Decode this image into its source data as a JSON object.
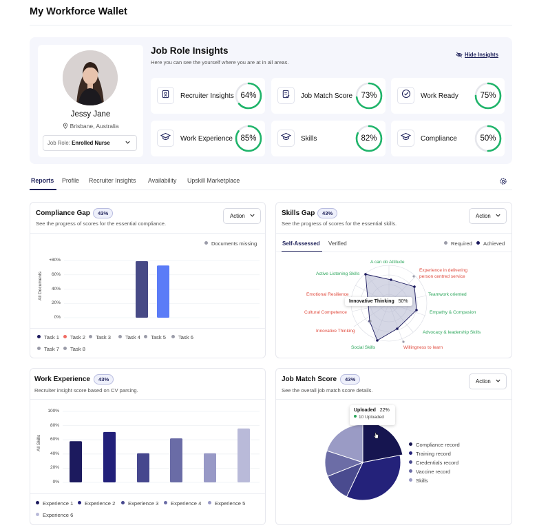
{
  "page": {
    "title": "My Workforce Wallet"
  },
  "profile": {
    "name": "Jessy Jane",
    "location": "Brisbane, Australia",
    "job_role_label": "Job Role:",
    "job_role_value": "Enrolled Nurse"
  },
  "insights": {
    "title": "Job Role Insights",
    "subtitle": "Here you can see the yourself where you are at in all areas.",
    "hide_label": "Hide Insights",
    "metrics": [
      {
        "label": "Recruiter Insights",
        "value": "64%",
        "fraction": 0.64,
        "icon": "id-badge-icon"
      },
      {
        "label": "Job Match Score",
        "value": "73%",
        "fraction": 0.73,
        "icon": "document-check-icon"
      },
      {
        "label": "Work Ready",
        "value": "75%",
        "fraction": 0.75,
        "icon": "check-circle-icon"
      },
      {
        "label": "Work Experience",
        "value": "85%",
        "fraction": 0.85,
        "icon": "graduation-cap-icon"
      },
      {
        "label": "Skills",
        "value": "82%",
        "fraction": 0.82,
        "icon": "graduation-cap-icon"
      },
      {
        "label": "Compliance",
        "value": "50%",
        "fraction": 0.5,
        "icon": "graduation-cap-icon"
      }
    ]
  },
  "tabs": [
    "Reports",
    "Profile",
    "Recruiter Insights",
    "Availability",
    "Upskill Marketplace"
  ],
  "compliance": {
    "title": "Compliance Gap",
    "badge": "43%",
    "subtitle": "See the progress of scores for the essential compliance.",
    "action": "Action",
    "legend_missing": "Documents missing",
    "ytitle": "All Documents",
    "yticks": [
      "+80%",
      "60%",
      "40%",
      "20%",
      "0%"
    ],
    "tasks": [
      "Task 1",
      "Task 2",
      "Task 3",
      "Task 4",
      "Task 5",
      "Task 6",
      "Task 7",
      "Task 8"
    ]
  },
  "skills_gap": {
    "title": "Skills Gap",
    "badge": "43%",
    "subtitle": "See the progress of scores for the essential skills.",
    "action": "Action",
    "subtabs": [
      "Self-Assessed",
      "Verified"
    ],
    "legend": [
      "Required",
      "Achieved"
    ],
    "labels": [
      "A can do Attitude",
      "Experience in delivering person centred service",
      "Teamwork oriented",
      "Empathy & Compasion",
      "Advocacy & leadership Skills",
      "Willingness to learn",
      "Social Skills",
      "Innovative Thinking",
      "Cultural Competence",
      "Emotional Resilience",
      "Active Listening Skills"
    ],
    "tooltip": {
      "label": "Innovative Thinking",
      "value": "50%"
    }
  },
  "work_experience": {
    "title": "Work Experience",
    "badge": "43%",
    "subtitle": "Recruiter insight score based on CV parsing.",
    "ytitle": "All Skills",
    "yticks": [
      "100%",
      "80%",
      "60%",
      "40%",
      "20%",
      "0%"
    ],
    "legend": [
      "Experience 1",
      "Experience 2",
      "Experience 3",
      "Experience 4",
      "Experience 5",
      "Experience 6"
    ]
  },
  "job_match": {
    "title": "Job Match Score",
    "badge": "43%",
    "subtitle": "See the overall job match score details.",
    "action": "Action",
    "tooltip": {
      "label": "Uploaded",
      "value": "22%",
      "detail": "10 Uploaded"
    },
    "legend": [
      "Compliance record",
      "Training record",
      "Credentials record",
      "Vaccine record",
      "Skills"
    ]
  },
  "chart_data": [
    {
      "type": "bar",
      "title": "Compliance Gap",
      "ylabel": "All Documents",
      "ylim": [
        0,
        90
      ],
      "categories": [
        "Task 1",
        "Task 2"
      ],
      "values": [
        79,
        73
      ],
      "colors": [
        "#474a86",
        "#5b7cf7"
      ]
    },
    {
      "type": "bar",
      "title": "Work Experience",
      "ylabel": "All Skills",
      "ylim": [
        0,
        100
      ],
      "categories": [
        "Experience 1",
        "Experience 2",
        "Experience 3",
        "Experience 4",
        "Experience 5",
        "Experience 6"
      ],
      "values": [
        58,
        71,
        41,
        62,
        41,
        76
      ],
      "colors": [
        "#1c1a5e",
        "#22207a",
        "#46478e",
        "#6a6ca6",
        "#9899c6",
        "#b9bad9"
      ]
    },
    {
      "type": "pie",
      "title": "Job Match Score",
      "categories": [
        "Compliance record",
        "Training record",
        "Credentials record",
        "Vaccine record",
        "Skills"
      ],
      "values": [
        22,
        35,
        12,
        11,
        20
      ],
      "colors": [
        "#161550",
        "#24227a",
        "#4a4b8f",
        "#6c6da6",
        "#9a9bc5"
      ]
    }
  ]
}
